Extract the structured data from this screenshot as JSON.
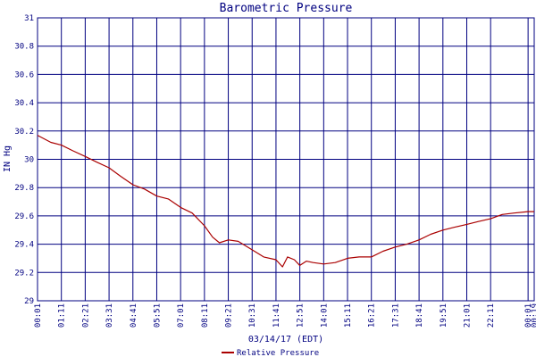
{
  "chart_data": {
    "type": "line",
    "title": "Barometric Pressure",
    "xlabel": "03/14/17 (EDT)",
    "ylabel": "IN Hg",
    "ylim": [
      29,
      31
    ],
    "y_ticks": [
      "29",
      "29.2",
      "29.4",
      "29.6",
      "29.8",
      "30",
      "30.2",
      "30.4",
      "30.6",
      "30.8",
      "31"
    ],
    "x_ticks": [
      "00:01",
      "01:11",
      "02:21",
      "03:31",
      "04:41",
      "05:51",
      "07:01",
      "08:11",
      "09:21",
      "10:31",
      "11:41",
      "12:51",
      "14:01",
      "15:11",
      "16:21",
      "17:31",
      "18:41",
      "19:51",
      "21:01",
      "22:11",
      "00:01",
      "00:19"
    ],
    "grid": true,
    "legend_position": "bottom",
    "series": [
      {
        "name": "Relative Pressure",
        "color": "#aa0000",
        "points": [
          [
            "00:01",
            30.17
          ],
          [
            "00:40",
            30.12
          ],
          [
            "01:11",
            30.1
          ],
          [
            "01:45",
            30.06
          ],
          [
            "02:21",
            30.02
          ],
          [
            "02:55",
            29.98
          ],
          [
            "03:31",
            29.94
          ],
          [
            "04:05",
            29.88
          ],
          [
            "04:41",
            29.82
          ],
          [
            "05:15",
            29.79
          ],
          [
            "05:51",
            29.74
          ],
          [
            "06:25",
            29.72
          ],
          [
            "07:01",
            29.66
          ],
          [
            "07:35",
            29.62
          ],
          [
            "08:11",
            29.53
          ],
          [
            "08:35",
            29.45
          ],
          [
            "08:55",
            29.41
          ],
          [
            "09:21",
            29.43
          ],
          [
            "09:50",
            29.42
          ],
          [
            "10:31",
            29.36
          ],
          [
            "11:05",
            29.31
          ],
          [
            "11:41",
            29.29
          ],
          [
            "12:00",
            29.24
          ],
          [
            "12:15",
            29.31
          ],
          [
            "12:35",
            29.29
          ],
          [
            "12:51",
            29.25
          ],
          [
            "13:10",
            29.28
          ],
          [
            "13:30",
            29.27
          ],
          [
            "14:01",
            29.26
          ],
          [
            "14:35",
            29.27
          ],
          [
            "15:11",
            29.3
          ],
          [
            "15:45",
            29.31
          ],
          [
            "16:21",
            29.31
          ],
          [
            "16:55",
            29.35
          ],
          [
            "17:31",
            29.38
          ],
          [
            "18:05",
            29.4
          ],
          [
            "18:41",
            29.43
          ],
          [
            "19:15",
            29.47
          ],
          [
            "19:51",
            29.5
          ],
          [
            "20:25",
            29.52
          ],
          [
            "21:01",
            29.54
          ],
          [
            "21:35",
            29.56
          ],
          [
            "22:11",
            29.58
          ],
          [
            "22:45",
            29.61
          ],
          [
            "23:20",
            29.62
          ],
          [
            "00:01",
            29.63
          ],
          [
            "00:19",
            29.63
          ]
        ]
      }
    ]
  }
}
